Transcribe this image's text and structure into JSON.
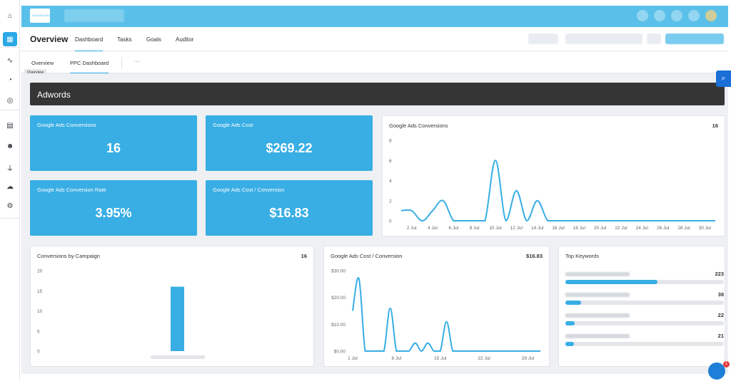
{
  "app": {
    "logo_text": "DASHBOARD",
    "page_title": "Overview"
  },
  "sidebar": {
    "items": [
      {
        "icon": "home-icon",
        "glyph": "⌂"
      },
      {
        "icon": "dashboard-icon",
        "glyph": "▦",
        "active": true
      },
      {
        "icon": "activity-icon",
        "glyph": "∿"
      },
      {
        "icon": "pie-chart-icon",
        "glyph": "◔"
      },
      {
        "icon": "target-icon",
        "glyph": "◎"
      },
      {
        "icon": "report-icon",
        "glyph": "▤"
      },
      {
        "icon": "users-icon",
        "glyph": "☻"
      },
      {
        "icon": "plug-icon",
        "glyph": "⏚"
      },
      {
        "icon": "cloud-icon",
        "glyph": "☁"
      },
      {
        "icon": "settings-icon",
        "glyph": "⚙"
      }
    ]
  },
  "nav": {
    "tabs": [
      "Dashboard",
      "Tasks",
      "Goals",
      "Auditor"
    ],
    "active_tab": "Dashboard"
  },
  "subnav": {
    "tabs": [
      "Overview",
      "PPC Dashboard"
    ],
    "active_tab": "PPC Dashboard",
    "more_label": "···",
    "tooltip": "Overview"
  },
  "section": {
    "title": "Adwords"
  },
  "kpis": [
    {
      "title": "Google Ads Conversions",
      "value": "16"
    },
    {
      "title": "Google Ads Cost",
      "value": "$269.22"
    },
    {
      "title": "Google Ads Conversion Rate",
      "value": "3.95%"
    },
    {
      "title": "Google Ads Cost / Conversion",
      "value": "$16.83"
    }
  ],
  "conversions_chart": {
    "title": "Google Ads Conversions",
    "total": "16"
  },
  "campaign_chart": {
    "title": "Conversions by Campaign",
    "total": "16"
  },
  "cpc_chart": {
    "title": "Google Ads Cost / Conversion",
    "total": "$16.83"
  },
  "keywords": {
    "title": "Top Keywords",
    "items": [
      {
        "value": "223",
        "fraction": 0.58
      },
      {
        "value": "38",
        "fraction": 0.1
      },
      {
        "value": "22",
        "fraction": 0.06
      },
      {
        "value": "21",
        "fraction": 0.055
      }
    ]
  },
  "colors": {
    "accent": "#38aee4",
    "topbar": "#5ac0ea",
    "header": "#353535"
  },
  "chat": {
    "badge": "1"
  },
  "chart_data": [
    {
      "type": "line",
      "title": "Google Ads Conversions",
      "x": [
        "1 Jul",
        "2 Jul",
        "3 Jul",
        "4 Jul",
        "5 Jul",
        "6 Jul",
        "7 Jul",
        "8 Jul",
        "9 Jul",
        "10 Jul",
        "11 Jul",
        "12 Jul",
        "13 Jul",
        "14 Jul",
        "15 Jul",
        "16 Jul",
        "17 Jul",
        "18 Jul",
        "19 Jul",
        "20 Jul",
        "21 Jul",
        "22 Jul",
        "23 Jul",
        "24 Jul",
        "25 Jul",
        "26 Jul",
        "27 Jul",
        "28 Jul",
        "29 Jul",
        "30 Jul",
        "31 Jul"
      ],
      "x_tick_labels": [
        "2 Jul",
        "4 Jul",
        "6 Jul",
        "8 Jul",
        "10 Jul",
        "12 Jul",
        "14 Jul",
        "16 Jul",
        "18 Jul",
        "20 Jul",
        "22 Jul",
        "24 Jul",
        "26 Jul",
        "28 Jul",
        "30 Jul"
      ],
      "values": [
        1,
        1,
        0,
        1,
        2,
        0,
        0,
        0,
        0,
        6,
        0,
        3,
        0,
        2,
        0,
        0,
        0,
        0,
        0,
        0,
        0,
        0,
        0,
        0,
        0,
        0,
        0,
        0,
        0,
        0,
        0
      ],
      "ylim": [
        0,
        8
      ],
      "y_ticks": [
        "0",
        "2",
        "4",
        "6",
        "8"
      ],
      "grid": false
    },
    {
      "type": "bar",
      "title": "Conversions by Campaign",
      "categories": [
        ""
      ],
      "values": [
        16
      ],
      "ylim": [
        0,
        20
      ],
      "y_ticks": [
        "0",
        "5",
        "10",
        "15",
        "20"
      ],
      "grid": false
    },
    {
      "type": "line",
      "title": "Google Ads Cost / Conversion",
      "x": [
        "1 Jul",
        "2 Jul",
        "3 Jul",
        "4 Jul",
        "5 Jul",
        "6 Jul",
        "7 Jul",
        "8 Jul",
        "9 Jul",
        "10 Jul",
        "11 Jul",
        "12 Jul",
        "13 Jul",
        "14 Jul",
        "15 Jul",
        "16 Jul",
        "17 Jul",
        "18 Jul",
        "19 Jul",
        "20 Jul",
        "21 Jul",
        "22 Jul",
        "23 Jul",
        "24 Jul",
        "25 Jul",
        "26 Jul",
        "27 Jul",
        "28 Jul",
        "29 Jul",
        "30 Jul",
        "31 Jul"
      ],
      "x_tick_labels": [
        "1 Jul",
        "8 Jul",
        "15 Jul",
        "22 Jul",
        "29 Jul"
      ],
      "values": [
        15,
        27,
        0,
        0,
        0,
        0,
        16,
        0,
        0,
        0,
        3,
        0,
        3,
        0,
        0,
        11,
        0,
        0,
        0,
        0,
        0,
        0,
        0,
        0,
        0,
        0,
        0,
        0,
        0,
        0,
        0
      ],
      "ylim": [
        0,
        30
      ],
      "y_ticks": [
        "$0.00",
        "$10.00",
        "$20.00",
        "$30.00"
      ],
      "grid": false
    }
  ]
}
